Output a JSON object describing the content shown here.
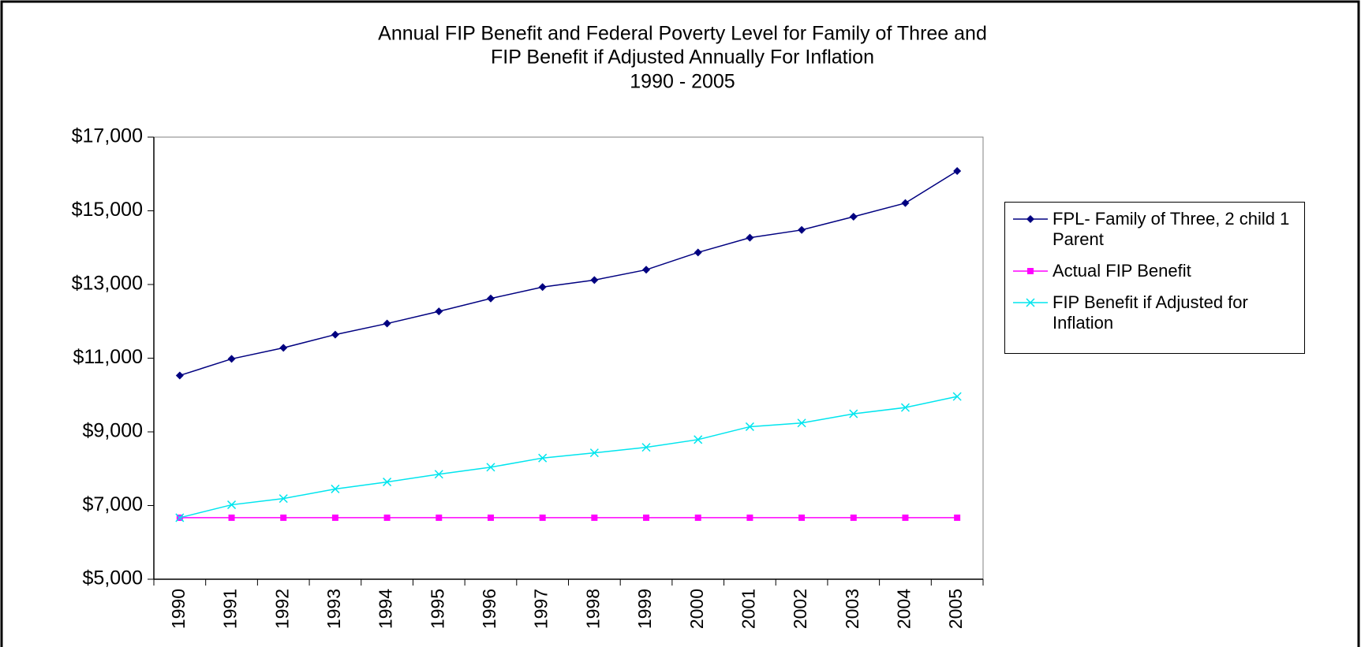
{
  "chart_data": {
    "type": "line",
    "title": "Annual FIP Benefit and Federal Poverty Level for Family of Three and",
    "subtitle": "FIP Benefit if Adjusted Annually For Inflation",
    "subtitle2": "1990 - 2005",
    "categories": [
      "1990",
      "1991",
      "1992",
      "1993",
      "1994",
      "1995",
      "1996",
      "1997",
      "1998",
      "1999",
      "2000",
      "2001",
      "2002",
      "2003",
      "2004",
      "2005"
    ],
    "series": [
      {
        "name": "FPL- Family of Three, 2 child 1 Parent",
        "color": "#000080",
        "marker": "diamond",
        "values": [
          10530,
          10980,
          11280,
          11640,
          11940,
          12270,
          12620,
          12930,
          13120,
          13400,
          13870,
          14270,
          14480,
          14840,
          15210,
          16080
        ]
      },
      {
        "name": "Actual FIP Benefit",
        "color": "#ff00ff",
        "marker": "square",
        "values": [
          6670,
          6670,
          6670,
          6670,
          6670,
          6670,
          6670,
          6670,
          6670,
          6670,
          6670,
          6670,
          6670,
          6670,
          6670,
          6670
        ]
      },
      {
        "name": "FIP Benefit if Adjusted for Inflation",
        "color": "#00e5ee",
        "marker": "x",
        "values": [
          6670,
          7020,
          7190,
          7450,
          7640,
          7850,
          8040,
          8290,
          8430,
          8580,
          8790,
          9140,
          9240,
          9490,
          9660,
          9960
        ]
      }
    ],
    "ylim": [
      5000,
      17000
    ],
    "yticks": [
      {
        "value": 5000,
        "label": "$5,000"
      },
      {
        "value": 7000,
        "label": "$7,000"
      },
      {
        "value": 9000,
        "label": "$9,000"
      },
      {
        "value": 11000,
        "label": "$11,000"
      },
      {
        "value": 13000,
        "label": "$13,000"
      },
      {
        "value": 15000,
        "label": "$15,000"
      },
      {
        "value": 17000,
        "label": "$17,000"
      }
    ],
    "grid": false,
    "legend": "right"
  }
}
